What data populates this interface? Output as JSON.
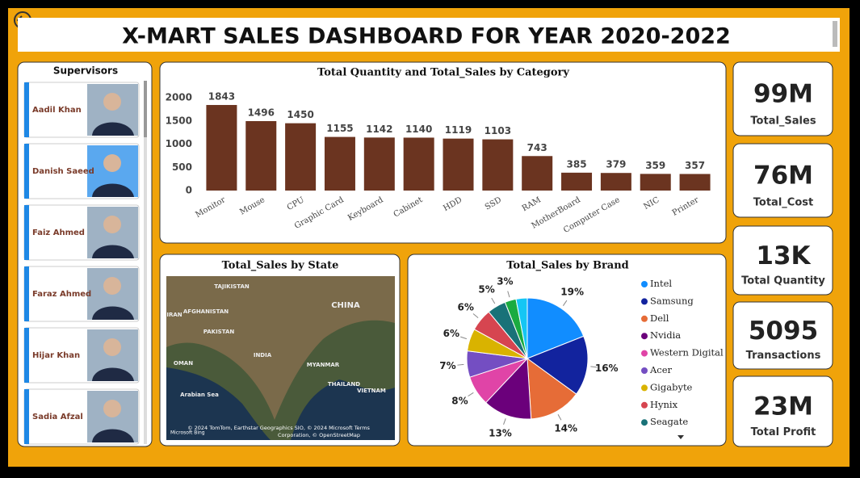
{
  "title": "X-MART SALES DASHBOARD FOR YEAR 2020-2022",
  "supervisors": {
    "title": "Supervisors",
    "names": [
      "Aadil Khan",
      "Danish Saeed",
      "Faiz Ahmed",
      "Faraz Ahmed",
      "Hijar Khan",
      "Sadia Afzal"
    ]
  },
  "kpis": [
    {
      "value": "99M",
      "label": "Total_Sales"
    },
    {
      "value": "76M",
      "label": "Total_Cost"
    },
    {
      "value": "13K",
      "label": "Total Quantity"
    },
    {
      "value": "5095",
      "label": "Transactions"
    },
    {
      "value": "23M",
      "label": "Total Profit"
    }
  ],
  "map": {
    "title": "Total_Sales by State",
    "labels": [
      "TAJIKISTAN",
      "AFGHANISTAN",
      "IRAN",
      "PAKISTAN",
      "INDIA",
      "CHINA",
      "MYANMAR",
      "OMAN",
      "THAILAND",
      "VIETNAM",
      "Arabian Sea"
    ],
    "credit": "© 2024 TomTom, Earthstar Geographics SIO, © 2024 Microsoft Terms",
    "credit2": "Corporation, © OpenStreetMap",
    "brand": "Microsoft Bing"
  },
  "chart_data": [
    {
      "type": "bar",
      "title": "Total Quantity and Total_Sales by Category",
      "categories": [
        "Monitor",
        "Mouse",
        "CPU",
        "Graphic Card",
        "Keyboard",
        "Cabinet",
        "HDD",
        "SSD",
        "RAM",
        "MotherBoard",
        "Computer Case",
        "NIC",
        "Printer"
      ],
      "values": [
        1843,
        1496,
        1450,
        1155,
        1142,
        1140,
        1119,
        1103,
        743,
        385,
        379,
        359,
        357
      ],
      "color": "#6b3420",
      "ylim": [
        0,
        2000
      ],
      "yticks": [
        0,
        500,
        1000,
        1500,
        2000
      ]
    },
    {
      "type": "pie",
      "title": "Total_Sales by Brand",
      "categories": [
        "Intel",
        "Samsung",
        "Dell",
        "Nvidia",
        "Western Digital",
        "Acer",
        "Gigabyte",
        "Hynix",
        "Seagate",
        null,
        null
      ],
      "values": [
        19,
        16,
        14,
        13,
        8,
        7,
        6,
        6,
        5,
        3,
        3
      ],
      "value_labels": [
        "19%",
        "16%",
        "14%",
        "13%",
        "8%",
        "7%",
        "6%",
        "6%",
        "5%",
        "3%",
        null
      ],
      "colors": [
        "#118dff",
        "#12239e",
        "#e66c37",
        "#6b007b",
        "#e044a7",
        "#744ec2",
        "#d9b300",
        "#d64550",
        "#197278",
        "#1aab40",
        "#15c6f4"
      ]
    }
  ]
}
